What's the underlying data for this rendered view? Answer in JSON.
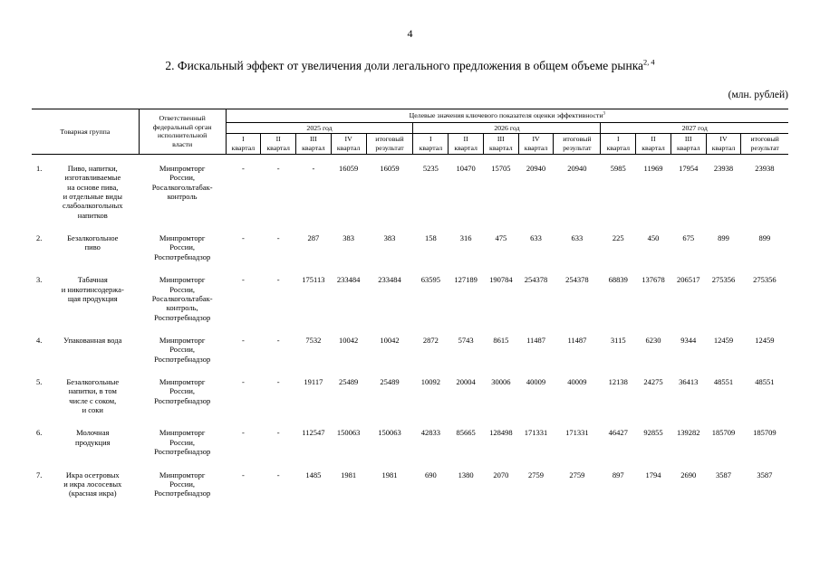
{
  "page": {
    "number": "4",
    "title": "2. Фискальный эффект от увеличения доли легального предложения в общем объеме рынка",
    "title_superscript": "2, 4",
    "units": "(млн. рублей)"
  },
  "table": {
    "col_product": "Товарная группа",
    "col_authority": "Ответственный\nфедеральный орган\nисполнительной\nвласти",
    "col_targets": "Целевые значения ключевого показателя оценки эффективности",
    "col_targets_superscript": "3",
    "years": [
      "2025 год",
      "2026 год",
      "2027 год"
    ],
    "quarters": [
      "I\nквартал",
      "II\nквартал",
      "III\nквартал",
      "IV\nквартал",
      "итоговый\nрезультат"
    ],
    "rows": [
      {
        "num": "1.",
        "product": "Пиво, напитки,\nизготавливаемые\nна основе пива,\nи отдельные виды\nслабоалкогольных\nнапитков",
        "authority": "Минпромторг\nРоссии,\nРосалкогольтабак-\nконтроль",
        "values": [
          "-",
          "-",
          "-",
          "16059",
          "16059",
          "5235",
          "10470",
          "15705",
          "20940",
          "20940",
          "5985",
          "11969",
          "17954",
          "23938",
          "23938"
        ]
      },
      {
        "num": "2.",
        "product": "Безалкогольное\nпиво",
        "authority": "Минпромторг\nРоссии,\nРоспотребнадзор",
        "values": [
          "-",
          "-",
          "287",
          "383",
          "383",
          "158",
          "316",
          "475",
          "633",
          "633",
          "225",
          "450",
          "675",
          "899",
          "899"
        ]
      },
      {
        "num": "3.",
        "product": "Табачная\nи никотинсодержа-\nщая продукция",
        "authority": "Минпромторг\nРоссии,\nРосалкогольтабак-\nконтроль,\nРоспотребнадзор",
        "values": [
          "-",
          "-",
          "175113",
          "233484",
          "233484",
          "63595",
          "127189",
          "190784",
          "254378",
          "254378",
          "68839",
          "137678",
          "206517",
          "275356",
          "275356"
        ]
      },
      {
        "num": "4.",
        "product": "Упакованная вода",
        "authority": "Минпромторг\nРоссии,\nРоспотребнадзор",
        "values": [
          "-",
          "-",
          "7532",
          "10042",
          "10042",
          "2872",
          "5743",
          "8615",
          "11487",
          "11487",
          "3115",
          "6230",
          "9344",
          "12459",
          "12459"
        ]
      },
      {
        "num": "5.",
        "product": "Безалкогольные\nнапитки, в том\nчисле с соком,\nи соки",
        "authority": "Минпромторг\nРоссии,\nРоспотребнадзор",
        "values": [
          "-",
          "-",
          "19117",
          "25489",
          "25489",
          "10092",
          "20004",
          "30006",
          "40009",
          "40009",
          "12138",
          "24275",
          "36413",
          "48551",
          "48551"
        ]
      },
      {
        "num": "6.",
        "product": "Молочная\nпродукция",
        "authority": "Минпромторг\nРоссии,\nРоспотребнадзор",
        "values": [
          "-",
          "-",
          "112547",
          "150063",
          "150063",
          "42833",
          "85665",
          "128498",
          "171331",
          "171331",
          "46427",
          "92855",
          "139282",
          "185709",
          "185709"
        ]
      },
      {
        "num": "7.",
        "product": "Икра осетровых\nи икра лососевых\n(красная икра)",
        "authority": "Минпромторг\nРоссии,\nРоспотребнадзор",
        "values": [
          "-",
          "-",
          "1485",
          "1981",
          "1981",
          "690",
          "1380",
          "2070",
          "2759",
          "2759",
          "897",
          "1794",
          "2690",
          "3587",
          "3587"
        ]
      }
    ]
  }
}
